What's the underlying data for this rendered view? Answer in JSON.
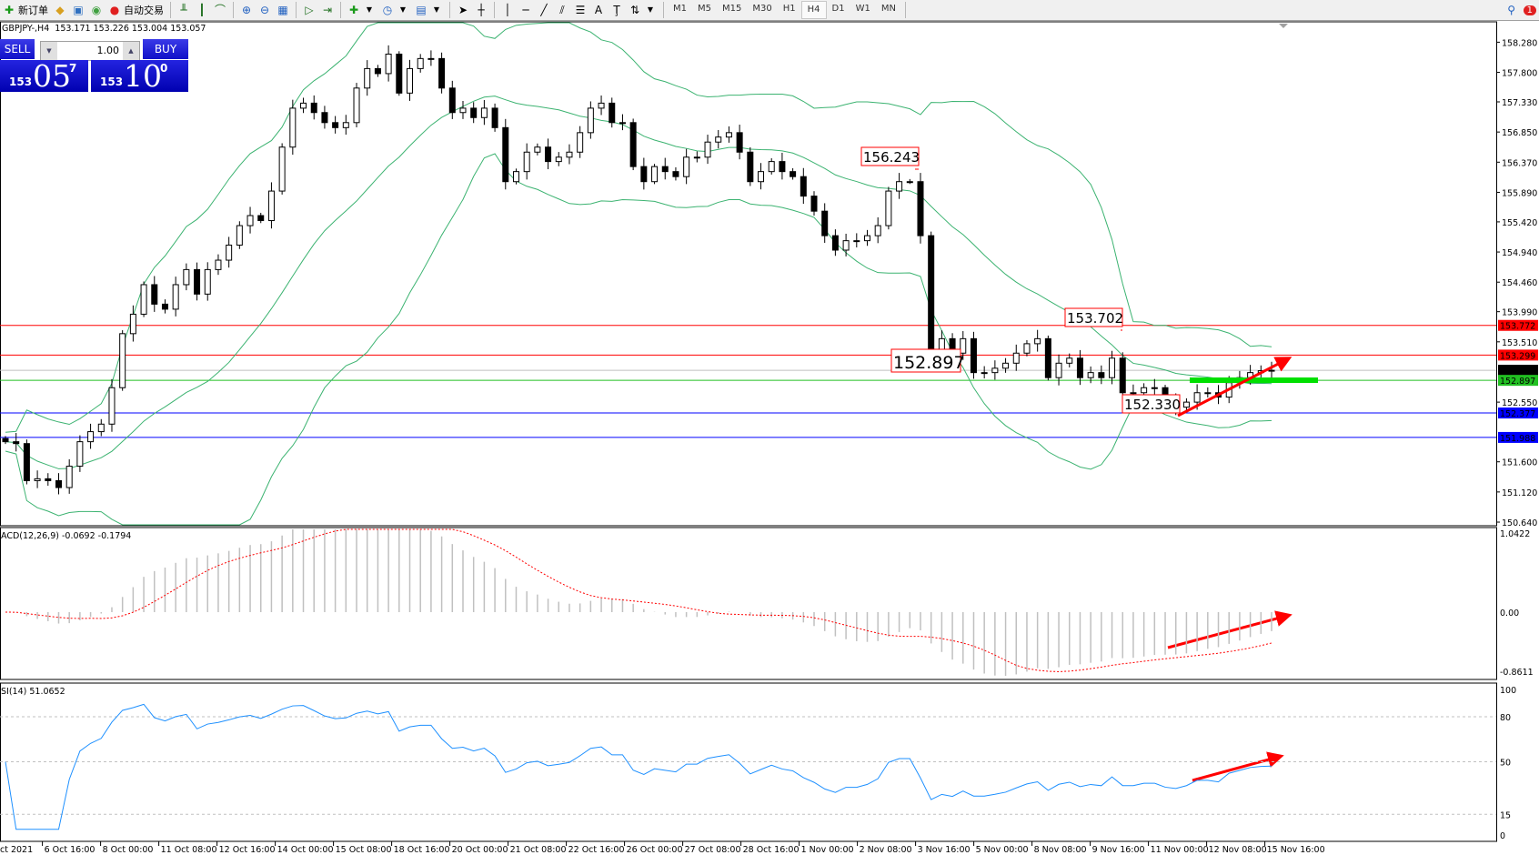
{
  "toolbar": {
    "new_order": "新订单",
    "auto_trading": "自动交易",
    "timeframes": [
      "M1",
      "M5",
      "M15",
      "M30",
      "H1",
      "H4",
      "D1",
      "W1",
      "MN"
    ],
    "active_timeframe": "H4",
    "notification_count": "1"
  },
  "chart": {
    "info": "GBPJPY-,H4  153.171 153.226 153.004 153.057",
    "macd_label": "ACD(12,26,9) -0.0692 -0.1794",
    "rsi_label": "SI(14) 51.0652"
  },
  "trade_panel": {
    "sell_label": "SELL",
    "buy_label": "BUY",
    "lots": "1.00",
    "sell_small": "153",
    "sell_main": "05",
    "sell_pip": "7",
    "buy_small": "153",
    "buy_main": "10",
    "buy_pip": "0"
  },
  "price_axis": {
    "ticks": [
      "158.280",
      "157.800",
      "157.330",
      "156.850",
      "156.370",
      "155.890",
      "155.420",
      "154.940",
      "154.460",
      "153.990",
      "153.510",
      "152.550",
      "151.600",
      "151.120",
      "150.640"
    ],
    "levels": [
      {
        "value": "153.772",
        "color": "#ff0000"
      },
      {
        "value": "153.299",
        "color": "#ff0000"
      },
      {
        "value": "153.057",
        "color": "#000000",
        "line": "#c0c0c0"
      },
      {
        "value": "152.897",
        "color": "#22c022"
      },
      {
        "value": "152.377",
        "color": "#0000ff"
      },
      {
        "value": "151.988",
        "color": "#0000ff"
      }
    ]
  },
  "macd_axis": [
    "1.0422",
    "0.00",
    "-0.8611"
  ],
  "rsi_axis": [
    "100",
    "80",
    "50",
    "15",
    "0"
  ],
  "time_axis": [
    "ct 2021",
    "6 Oct 16:00",
    "8 Oct 00:00",
    "11 Oct 08:00",
    "12 Oct 16:00",
    "14 Oct 00:00",
    "15 Oct 08:00",
    "18 Oct 16:00",
    "20 Oct 00:00",
    "21 Oct 08:00",
    "22 Oct 16:00",
    "26 Oct 00:00",
    "27 Oct 08:00",
    "28 Oct 16:00",
    "1 Nov 00:00",
    "2 Nov 08:00",
    "3 Nov 16:00",
    "5 Nov 00:00",
    "8 Nov 08:00",
    "9 Nov 16:00",
    "11 Nov 00:00",
    "12 Nov 08:00",
    "15 Nov 16:00"
  ],
  "annotations": [
    "156.243",
    "153.702",
    "152.897",
    "152.330"
  ],
  "colors": {
    "bands": "#3cb371",
    "candle": "#000000",
    "macd_hist": "#c0c0c0",
    "macd_signal": "#ff0000",
    "rsi": "#1e90ff",
    "arrow": "#ff0000",
    "support_bar": "#00e000"
  },
  "chart_data": {
    "type": "candlestick",
    "symbol": "GBPJPY-",
    "timeframe": "H4",
    "ylim": [
      150.64,
      158.28
    ],
    "closes": [
      151.92,
      151.89,
      151.3,
      151.33,
      151.3,
      151.19,
      151.53,
      151.92,
      152.08,
      152.2,
      152.78,
      153.64,
      153.95,
      154.42,
      154.11,
      154.03,
      154.42,
      154.66,
      154.27,
      154.66,
      154.81,
      155.05,
      155.36,
      155.52,
      155.44,
      155.91,
      156.61,
      157.23,
      157.31,
      157.16,
      157.0,
      156.92,
      157.0,
      157.55,
      157.86,
      157.78,
      158.09,
      157.47,
      157.86,
      158.02,
      158.02,
      157.55,
      157.16,
      157.23,
      157.08,
      157.23,
      156.92,
      156.06,
      156.22,
      156.53,
      156.61,
      156.38,
      156.45,
      156.53,
      156.84,
      157.23,
      157.31,
      157.0,
      157.0,
      156.3,
      156.06,
      156.3,
      156.22,
      156.14,
      156.45,
      156.45,
      156.69,
      156.77,
      156.84,
      156.53,
      156.06,
      156.22,
      156.38,
      156.22,
      156.14,
      155.83,
      155.59,
      155.2,
      154.97,
      155.12,
      155.12,
      155.2,
      155.36,
      155.91,
      156.06,
      156.06,
      155.2,
      153.33,
      153.56,
      153.33,
      153.56,
      153.02,
      153.02,
      153.09,
      153.17,
      153.33,
      153.48,
      153.56,
      152.94,
      153.17,
      153.25,
      152.94,
      153.02,
      152.94,
      153.25,
      152.7,
      152.7,
      152.78,
      152.78,
      152.55,
      152.47,
      152.55,
      152.7,
      152.7,
      152.63,
      152.86,
      152.94,
      153.02,
      153.05,
      153.057
    ]
  }
}
